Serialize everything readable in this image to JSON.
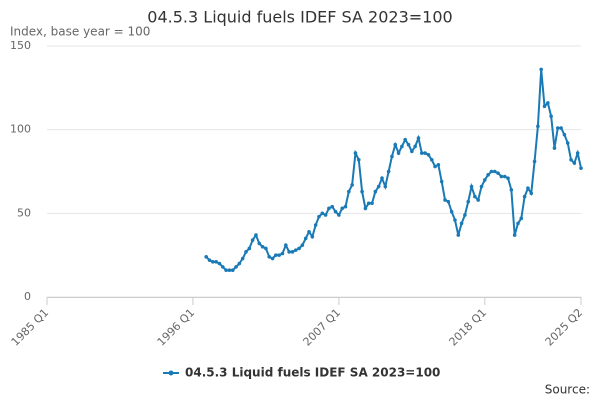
{
  "chart_data": {
    "type": "line",
    "title": "04.5.3 Liquid fuels IDEF SA 2023=100",
    "subtitle": "Index, base year = 100",
    "source": "Source:",
    "categories": [
      "1985 Q1",
      null,
      null,
      null,
      null,
      null,
      null,
      null,
      null,
      null,
      null,
      null,
      null,
      null,
      null,
      null,
      null,
      null,
      null,
      null,
      null,
      null,
      null,
      null,
      null,
      null,
      null,
      null,
      null,
      null,
      null,
      null,
      null,
      null,
      null,
      null,
      null,
      null,
      null,
      null,
      null,
      null,
      null,
      null,
      "1996 Q1",
      null,
      null,
      null,
      null,
      null,
      null,
      null,
      null,
      null,
      null,
      null,
      null,
      null,
      null,
      null,
      null,
      null,
      null,
      null,
      null,
      null,
      null,
      null,
      null,
      null,
      null,
      null,
      null,
      null,
      null,
      null,
      null,
      null,
      null,
      null,
      null,
      null,
      null,
      null,
      null,
      null,
      null,
      null,
      "2007 Q1",
      null,
      null,
      null,
      null,
      null,
      null,
      null,
      null,
      null,
      null,
      null,
      null,
      null,
      null,
      null,
      null,
      null,
      null,
      null,
      null,
      null,
      null,
      null,
      null,
      null,
      null,
      null,
      null,
      null,
      null,
      null,
      null,
      null,
      null,
      null,
      null,
      null,
      null,
      null,
      null,
      null,
      null,
      null,
      "2018 Q1",
      null,
      null,
      null,
      null,
      null,
      null,
      null,
      null,
      null,
      null,
      null,
      null,
      null,
      null,
      null,
      null,
      null,
      null,
      null,
      null,
      null,
      null,
      null,
      null,
      null,
      null,
      null,
      null,
      "2025 Q2"
    ],
    "series": [
      {
        "name": "04.5.3 Liquid fuels IDEF SA 2023=100",
        "color": "#1a7ab5",
        "values": [
          null,
          null,
          null,
          null,
          null,
          null,
          null,
          null,
          null,
          null,
          null,
          null,
          null,
          null,
          null,
          null,
          null,
          null,
          null,
          null,
          null,
          null,
          null,
          null,
          null,
          null,
          null,
          null,
          null,
          null,
          null,
          null,
          null,
          null,
          null,
          null,
          null,
          null,
          null,
          null,
          null,
          null,
          null,
          null,
          null,
          null,
          null,
          null,
          24,
          22,
          21,
          21,
          20,
          18,
          16,
          16,
          16,
          18,
          20,
          23,
          27,
          29,
          34,
          37,
          32,
          30,
          29,
          24,
          23,
          25,
          25,
          26,
          31,
          27,
          27,
          28,
          29,
          31,
          35,
          39,
          36,
          43,
          48,
          50,
          49,
          53,
          54,
          51,
          49,
          53,
          54,
          63,
          67,
          86,
          82,
          63,
          53,
          56,
          56,
          63,
          66,
          71,
          66,
          75,
          84,
          91,
          86,
          90,
          94,
          91,
          87,
          90,
          95,
          86,
          86,
          85,
          82,
          78,
          79,
          69,
          58,
          57,
          51,
          46,
          37,
          44,
          49,
          57,
          66,
          60,
          58,
          66,
          70,
          73,
          75,
          75,
          74,
          72,
          72,
          71,
          64,
          37,
          44,
          47,
          60,
          65,
          62,
          81,
          102,
          136,
          114,
          116,
          108,
          89,
          101,
          101,
          97,
          92,
          82,
          80,
          86,
          77
        ]
      }
    ],
    "ylim": [
      0,
      150
    ],
    "yticks": [
      0,
      50,
      100,
      150
    ],
    "grid": true
  }
}
